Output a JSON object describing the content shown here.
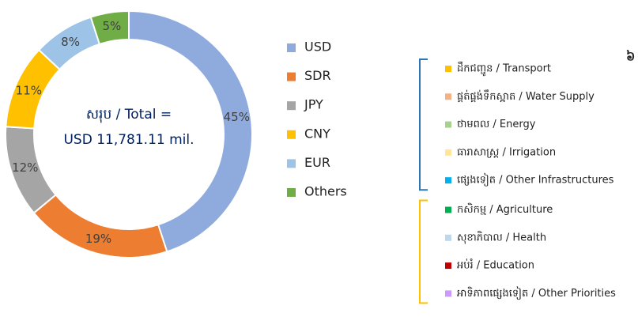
{
  "chart_data": {
    "type": "donut",
    "center_text": [
      "សរុប / Total =",
      "USD 11,781.11 mil."
    ],
    "categories": [
      "USD",
      "SDR",
      "JPY",
      "CNY",
      "EUR",
      "Others"
    ],
    "values": [
      45,
      19,
      12,
      11,
      8,
      5
    ],
    "value_labels": [
      "45%",
      "19%",
      "12%",
      "11%",
      "8%",
      "5%"
    ],
    "colors": [
      "#8faadc",
      "#ed7d31",
      "#a5a5a5",
      "#ffc000",
      "#9dc3e6",
      "#70ad47"
    ]
  },
  "page_number": "៦",
  "sectors": {
    "groups": [
      {
        "color": "#2e75b6",
        "items": [
          {
            "label": "ដឹកជញ្ជូន / Transport",
            "color": "#ffc000"
          },
          {
            "label": "ផ្គត់ផ្គង់ទឹកស្អាត / Water Supply",
            "color": "#f4b183"
          },
          {
            "label": "ថាមពល / Energy",
            "color": "#a9d18e"
          },
          {
            "label": "ធារាសាស្ត្រ / Irrigation",
            "color": "#ffe699"
          },
          {
            "label": "ផ្សេងទៀត / Other Infrastructures",
            "color": "#00b0f0"
          }
        ]
      },
      {
        "color": "#ffc000",
        "items": [
          {
            "label": "កសិកម្ម / Agriculture",
            "color": "#00b050"
          },
          {
            "label": "សុខាភិបាល / Health",
            "color": "#bdd7ee"
          },
          {
            "label": "អប់រំ / Education",
            "color": "#c00000"
          },
          {
            "label": "អាទិភាពផ្សេងទៀត / Other Priorities",
            "color": "#cc99ff"
          }
        ]
      }
    ]
  }
}
